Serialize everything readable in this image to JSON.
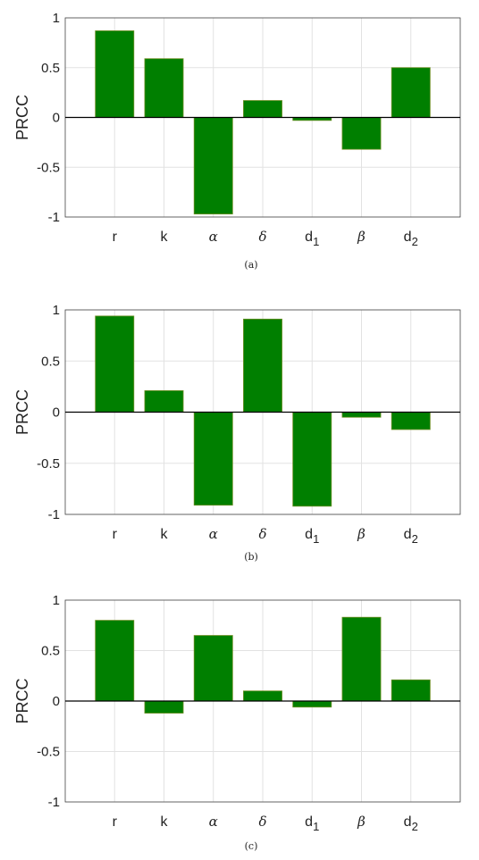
{
  "chart_data": [
    {
      "type": "bar",
      "panel_label": "(a)",
      "ylabel": "PRCC",
      "ylim": [
        -1,
        1
      ],
      "yticks": [
        "-1",
        "-0.5",
        "0",
        "0.5",
        "1"
      ],
      "grid": true,
      "categories": [
        "r",
        "k",
        "α",
        "δ",
        "d1",
        "β",
        "d2"
      ],
      "values": [
        0.87,
        0.59,
        -0.97,
        0.17,
        -0.03,
        -0.32,
        0.5
      ],
      "color": "#007f00"
    },
    {
      "type": "bar",
      "panel_label": "(b)",
      "ylabel": "PRCC",
      "ylim": [
        -1,
        1
      ],
      "yticks": [
        "-1",
        "-0.5",
        "0",
        "0.5",
        "1"
      ],
      "grid": true,
      "categories": [
        "r",
        "k",
        "α",
        "δ",
        "d1",
        "β",
        "d2"
      ],
      "values": [
        0.94,
        0.21,
        -0.91,
        0.91,
        -0.92,
        -0.05,
        -0.17
      ],
      "color": "#007f00"
    },
    {
      "type": "bar",
      "panel_label": "(c)",
      "ylabel": "PRCC",
      "ylim": [
        -1,
        1
      ],
      "yticks": [
        "-1",
        "-0.5",
        "0",
        "0.5",
        "1"
      ],
      "grid": true,
      "categories": [
        "r",
        "k",
        "α",
        "δ",
        "d1",
        "β",
        "d2"
      ],
      "values": [
        0.8,
        -0.12,
        0.65,
        0.1,
        -0.06,
        0.83,
        0.21
      ],
      "color": "#007f00"
    }
  ]
}
